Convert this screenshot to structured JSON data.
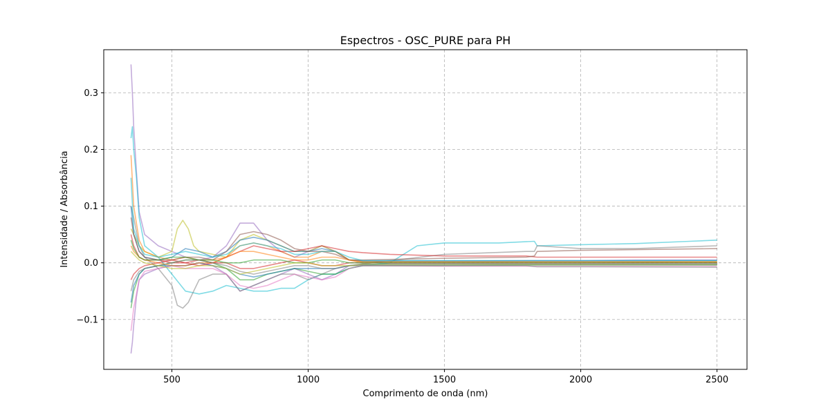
{
  "chart_data": {
    "type": "line",
    "title": "Espectros - OSC_PURE para PH",
    "xlabel": "Comprimento de onda (nm)",
    "ylabel": "Intensidade / Absorbância",
    "xlim": [
      250,
      2610
    ],
    "ylim": [
      -0.188,
      0.376
    ],
    "x_ticks": [
      500,
      1000,
      1500,
      2000,
      2500
    ],
    "x_tick_labels": [
      "500",
      "1000",
      "1500",
      "2000",
      "2500"
    ],
    "y_ticks": [
      -0.1,
      0.0,
      0.1,
      0.2,
      0.3
    ],
    "y_tick_labels": [
      "−0.1",
      "0.0",
      "0.1",
      "0.2",
      "0.3"
    ],
    "grid": true,
    "grid_style": "dashed",
    "legend": "none",
    "series_count": 18,
    "series": [
      {
        "color": "#9467bd",
        "x": [
          350,
          355,
          360,
          370,
          380,
          400,
          450,
          500,
          550,
          600,
          650,
          700,
          750,
          800,
          850,
          900,
          950,
          1000,
          1050,
          1100,
          1150,
          1200,
          1300,
          1500,
          1800,
          1830,
          1840,
          2000,
          2200,
          2400,
          2500
        ],
        "values": [
          0.35,
          0.3,
          0.24,
          0.16,
          0.09,
          0.05,
          0.03,
          0.02,
          0.01,
          0.005,
          0.01,
          0.03,
          0.07,
          0.07,
          0.04,
          0.02,
          0.01,
          0.02,
          0.03,
          0.02,
          0.005,
          0.003,
          0.003,
          0.003,
          0.004,
          0.004,
          0.004,
          0.004,
          0.005,
          0.005,
          0.005
        ]
      },
      {
        "color": "#9467bd",
        "x": [
          350,
          355,
          360,
          370,
          380,
          400,
          450,
          500,
          550,
          600,
          650,
          700,
          750,
          800,
          850,
          900,
          950,
          1000,
          1050,
          1100,
          1150,
          1200,
          1300,
          1500,
          1800,
          1830,
          1840,
          2000,
          2200,
          2400,
          2500
        ],
        "values": [
          -0.16,
          -0.14,
          -0.11,
          -0.06,
          -0.03,
          -0.02,
          -0.01,
          -0.005,
          -0.005,
          0.0,
          -0.005,
          -0.02,
          -0.05,
          -0.04,
          -0.03,
          -0.02,
          -0.01,
          -0.02,
          -0.03,
          -0.02,
          -0.005,
          -0.003,
          -0.002,
          -0.002,
          -0.002,
          -0.002,
          -0.002,
          -0.002,
          -0.002,
          -0.002,
          -0.002
        ]
      },
      {
        "color": "#17becf",
        "x": [
          350,
          355,
          360,
          370,
          380,
          400,
          450,
          500,
          550,
          600,
          650,
          700,
          750,
          800,
          850,
          900,
          950,
          1000,
          1050,
          1100,
          1150,
          1200,
          1300,
          1400,
          1500,
          1700,
          1830,
          1840,
          2000,
          2200,
          2400,
          2500
        ],
        "values": [
          0.22,
          0.24,
          0.2,
          0.15,
          0.08,
          0.03,
          0.01,
          -0.02,
          -0.05,
          -0.055,
          -0.05,
          -0.04,
          -0.045,
          -0.05,
          -0.05,
          -0.045,
          -0.045,
          -0.03,
          -0.02,
          -0.02,
          -0.01,
          -0.005,
          0.0,
          0.03,
          0.035,
          0.035,
          0.038,
          0.03,
          0.032,
          0.034,
          0.038,
          0.04
        ]
      },
      {
        "color": "#bcbd22",
        "x": [
          350,
          360,
          380,
          400,
          450,
          500,
          520,
          540,
          560,
          580,
          600,
          650,
          700,
          750,
          800,
          850,
          900,
          950,
          1000,
          1050,
          1100,
          1150,
          1200,
          1500,
          1800,
          1840,
          2000,
          2500
        ],
        "values": [
          0.06,
          0.05,
          0.03,
          0.02,
          0.01,
          0.02,
          0.06,
          0.075,
          0.06,
          0.03,
          0.02,
          0.015,
          0.01,
          0.04,
          0.05,
          0.04,
          0.03,
          0.02,
          0.02,
          0.03,
          0.02,
          0.005,
          0.002,
          0.002,
          0.002,
          0.002,
          0.002,
          0.002
        ]
      },
      {
        "color": "#7f7f7f",
        "x": [
          350,
          360,
          380,
          400,
          450,
          500,
          520,
          540,
          560,
          580,
          600,
          650,
          700,
          750,
          800,
          850,
          900,
          950,
          1000,
          1050,
          1100,
          1150,
          1200,
          1500,
          1800,
          1830,
          1840,
          2000,
          2200,
          2500
        ],
        "values": [
          0.1,
          0.08,
          0.03,
          0.01,
          -0.01,
          -0.04,
          -0.075,
          -0.08,
          -0.07,
          -0.05,
          -0.03,
          -0.02,
          -0.02,
          -0.05,
          -0.04,
          -0.03,
          -0.02,
          -0.02,
          -0.03,
          -0.02,
          -0.01,
          -0.005,
          -0.002,
          0.015,
          0.02,
          0.02,
          0.03,
          0.025,
          0.025,
          0.03
        ]
      },
      {
        "color": "#1f77b4",
        "x": [
          350,
          360,
          380,
          400,
          450,
          500,
          550,
          600,
          650,
          700,
          750,
          800,
          850,
          900,
          950,
          1000,
          1050,
          1100,
          1150,
          1200,
          1500,
          1800,
          1840,
          2000,
          2500
        ],
        "values": [
          0.1,
          0.05,
          0.02,
          0.01,
          0.005,
          0.01,
          0.025,
          0.02,
          0.01,
          0.02,
          0.04,
          0.045,
          0.04,
          0.03,
          0.02,
          0.02,
          0.025,
          0.02,
          0.005,
          0.003,
          0.003,
          0.003,
          0.003,
          0.003,
          0.004
        ]
      },
      {
        "color": "#ff7f0e",
        "x": [
          350,
          360,
          380,
          400,
          450,
          500,
          550,
          600,
          650,
          700,
          750,
          800,
          850,
          900,
          950,
          1000,
          1050,
          1100,
          1150,
          1200,
          1500,
          1800,
          1840,
          2000,
          2500
        ],
        "values": [
          0.19,
          0.1,
          0.04,
          0.02,
          0.01,
          0.005,
          0.01,
          0.005,
          0.005,
          0.01,
          0.03,
          0.035,
          0.03,
          0.02,
          0.01,
          0.01,
          0.02,
          0.02,
          0.005,
          0.002,
          0.002,
          0.002,
          0.002,
          0.002,
          0.002
        ]
      },
      {
        "color": "#d62728",
        "x": [
          350,
          360,
          380,
          400,
          450,
          500,
          550,
          600,
          650,
          700,
          750,
          800,
          850,
          900,
          950,
          1000,
          1050,
          1100,
          1150,
          1200,
          1300,
          1500,
          1800,
          1840,
          2000,
          2500
        ],
        "values": [
          0.05,
          0.03,
          0.01,
          0.005,
          0.005,
          0.0,
          0.0,
          0.005,
          0.0,
          0.01,
          0.02,
          0.03,
          0.025,
          0.02,
          0.02,
          0.025,
          0.03,
          0.025,
          0.02,
          0.018,
          0.015,
          0.012,
          0.012,
          0.01,
          0.01,
          0.01
        ]
      },
      {
        "color": "#2ca02c",
        "x": [
          350,
          360,
          380,
          400,
          450,
          500,
          550,
          600,
          650,
          700,
          750,
          800,
          850,
          900,
          950,
          1000,
          1050,
          1100,
          1150,
          1200,
          1500,
          1800,
          1840,
          2000,
          2500
        ],
        "values": [
          -0.08,
          -0.05,
          -0.02,
          -0.01,
          -0.005,
          0.0,
          0.005,
          0.005,
          0.0,
          -0.01,
          -0.03,
          -0.03,
          -0.02,
          -0.015,
          -0.01,
          -0.015,
          -0.02,
          -0.02,
          -0.01,
          -0.005,
          -0.005,
          -0.004,
          -0.004,
          -0.004,
          -0.004
        ]
      },
      {
        "color": "#8c564b",
        "x": [
          350,
          360,
          380,
          400,
          450,
          500,
          550,
          600,
          650,
          700,
          750,
          800,
          850,
          900,
          950,
          1000,
          1050,
          1100,
          1150,
          1200,
          1500,
          1800,
          1830,
          1840,
          2000,
          2500
        ],
        "values": [
          0.08,
          0.05,
          0.02,
          0.01,
          0.005,
          0.005,
          0.01,
          0.01,
          0.005,
          0.02,
          0.05,
          0.055,
          0.05,
          0.04,
          0.025,
          0.02,
          0.02,
          0.015,
          0.005,
          0.005,
          0.008,
          0.01,
          0.012,
          0.02,
          0.022,
          0.025
        ]
      },
      {
        "color": "#e377c2",
        "x": [
          350,
          360,
          380,
          400,
          450,
          500,
          550,
          600,
          650,
          700,
          750,
          800,
          850,
          900,
          950,
          1000,
          1050,
          1100,
          1150,
          1200,
          1500,
          1800,
          1840,
          2000,
          2500
        ],
        "values": [
          -0.12,
          -0.08,
          -0.03,
          -0.015,
          -0.01,
          -0.005,
          -0.01,
          -0.01,
          -0.01,
          -0.02,
          -0.04,
          -0.045,
          -0.04,
          -0.03,
          -0.02,
          -0.025,
          -0.03,
          -0.025,
          -0.01,
          -0.005,
          -0.006,
          -0.006,
          -0.006,
          -0.006,
          -0.006
        ]
      },
      {
        "color": "#17becf",
        "x": [
          350,
          360,
          380,
          400,
          450,
          500,
          550,
          600,
          650,
          700,
          750,
          800,
          850,
          900,
          950,
          1000,
          1050,
          1100,
          1150,
          1200,
          1500,
          1800,
          1840,
          2000,
          2500
        ],
        "values": [
          0.15,
          0.06,
          0.03,
          0.015,
          0.01,
          0.015,
          0.02,
          0.015,
          0.01,
          0.015,
          0.03,
          0.035,
          0.03,
          0.025,
          0.015,
          0.015,
          0.02,
          0.02,
          0.01,
          0.004,
          0.004,
          0.004,
          0.004,
          0.004,
          0.004
        ]
      },
      {
        "color": "#1f77b4",
        "x": [
          350,
          360,
          380,
          400,
          450,
          500,
          550,
          600,
          650,
          700,
          750,
          800,
          850,
          900,
          950,
          1000,
          1050,
          1100,
          1150,
          1200,
          1500,
          1800,
          1840,
          2000,
          2500
        ],
        "values": [
          -0.07,
          -0.04,
          -0.02,
          -0.01,
          -0.005,
          -0.005,
          -0.005,
          0.0,
          -0.005,
          -0.01,
          -0.02,
          -0.025,
          -0.02,
          -0.015,
          -0.01,
          -0.01,
          -0.01,
          -0.01,
          -0.005,
          -0.003,
          -0.003,
          -0.003,
          -0.003,
          -0.003,
          -0.003
        ]
      },
      {
        "color": "#ff7f0e",
        "x": [
          350,
          360,
          380,
          400,
          450,
          500,
          550,
          600,
          650,
          700,
          750,
          800,
          850,
          900,
          950,
          1000,
          1050,
          1100,
          1150,
          1200,
          1500,
          1800,
          1840,
          2000,
          2500
        ],
        "values": [
          0.03,
          0.02,
          0.01,
          0.005,
          0.0,
          -0.005,
          -0.005,
          0.0,
          0.0,
          0.01,
          0.02,
          0.02,
          0.015,
          0.01,
          0.005,
          0.005,
          0.01,
          0.01,
          0.005,
          0.0,
          0.0,
          0.0,
          0.0,
          0.0,
          0.001
        ]
      },
      {
        "color": "#d62728",
        "x": [
          350,
          360,
          380,
          400,
          450,
          500,
          550,
          600,
          650,
          700,
          750,
          800,
          850,
          900,
          950,
          1000,
          1050,
          1100,
          1150,
          1200,
          1500,
          1800,
          1840,
          2000,
          2500
        ],
        "values": [
          -0.03,
          -0.02,
          -0.01,
          -0.005,
          0.0,
          0.005,
          0.0,
          -0.005,
          0.0,
          0.0,
          -0.01,
          -0.01,
          -0.005,
          0.0,
          0.005,
          0.0,
          -0.005,
          -0.005,
          0.0,
          0.0,
          0.0,
          0.0,
          0.0,
          0.0,
          0.0
        ]
      },
      {
        "color": "#2ca02c",
        "x": [
          350,
          360,
          380,
          400,
          450,
          500,
          550,
          600,
          650,
          700,
          750,
          800,
          850,
          900,
          950,
          1000,
          1050,
          1100,
          1150,
          1200,
          1500,
          1800,
          1840,
          2000,
          2500
        ],
        "values": [
          0.04,
          0.025,
          0.01,
          0.005,
          0.005,
          0.01,
          0.01,
          0.005,
          0.005,
          0.0,
          0.0,
          0.005,
          0.005,
          0.005,
          0.0,
          0.0,
          0.005,
          0.005,
          0.0,
          0.0,
          0.0,
          0.0,
          0.0,
          0.0,
          0.0
        ]
      },
      {
        "color": "#7f7f7f",
        "x": [
          350,
          360,
          380,
          400,
          450,
          500,
          550,
          600,
          650,
          700,
          750,
          800,
          850,
          900,
          950,
          1000,
          1050,
          1100,
          1150,
          1200,
          1500,
          1800,
          1840,
          2000,
          2500
        ],
        "values": [
          -0.05,
          -0.03,
          -0.015,
          -0.01,
          -0.005,
          0.0,
          0.005,
          0.005,
          0.0,
          -0.005,
          -0.015,
          -0.02,
          -0.015,
          -0.01,
          -0.005,
          -0.005,
          -0.01,
          -0.01,
          -0.005,
          -0.005,
          -0.005,
          -0.005,
          -0.007,
          -0.007,
          -0.008
        ]
      },
      {
        "color": "#bcbd22",
        "x": [
          350,
          360,
          380,
          400,
          450,
          500,
          550,
          600,
          650,
          700,
          750,
          800,
          850,
          900,
          950,
          1000,
          1050,
          1100,
          1150,
          1200,
          1500,
          1800,
          1840,
          2000,
          2500
        ],
        "values": [
          0.02,
          0.015,
          0.005,
          0.0,
          -0.005,
          -0.01,
          -0.01,
          -0.005,
          -0.005,
          -0.01,
          -0.02,
          -0.015,
          -0.01,
          -0.005,
          0.0,
          0.0,
          -0.005,
          -0.005,
          -0.005,
          -0.003,
          -0.003,
          -0.003,
          -0.003,
          -0.003,
          -0.003
        ]
      }
    ]
  }
}
